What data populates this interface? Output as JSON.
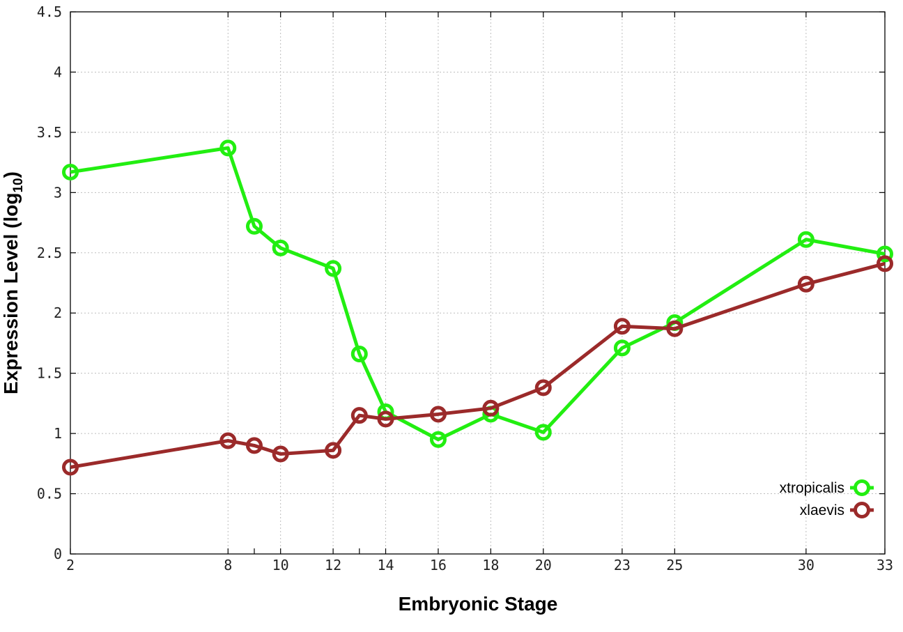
{
  "chart_data": {
    "type": "line",
    "title": "",
    "xlabel": "Embryonic Stage",
    "ylabel": "Expression Level (log",
    "ylabel_sub": "10",
    "ylabel_close": ")",
    "x": [
      2,
      8,
      9,
      10,
      12,
      13,
      14,
      16,
      18,
      20,
      23,
      25,
      30,
      33
    ],
    "x_ticks": [
      2,
      8,
      10,
      12,
      14,
      16,
      18,
      20,
      23,
      25,
      30,
      33
    ],
    "y_ticks": [
      "0",
      "0.5",
      "1",
      "1.5",
      "2",
      "2.5",
      "3",
      "3.5",
      "4",
      "4.5"
    ],
    "xlim": [
      2,
      33
    ],
    "ylim": [
      0,
      4.5
    ],
    "grid": true,
    "legend_position": "bottom-right",
    "series": [
      {
        "name": "xtropicalis",
        "color": "#22ee11",
        "values": [
          3.17,
          3.37,
          2.72,
          2.54,
          2.37,
          1.66,
          1.18,
          0.95,
          1.16,
          1.01,
          1.71,
          1.92,
          2.61,
          2.49
        ]
      },
      {
        "name": "xlaevis",
        "color": "#9b2a2a",
        "values": [
          0.72,
          0.94,
          0.9,
          0.83,
          0.86,
          1.15,
          1.12,
          1.16,
          1.21,
          1.38,
          1.89,
          1.87,
          2.24,
          2.41
        ]
      }
    ]
  }
}
